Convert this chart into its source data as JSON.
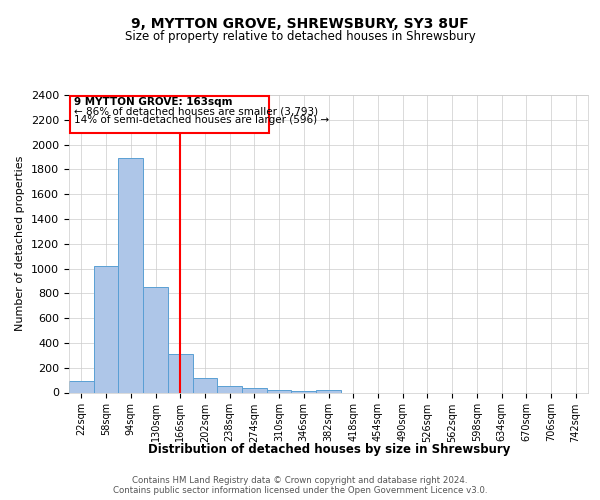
{
  "title1": "9, MYTTON GROVE, SHREWSBURY, SY3 8UF",
  "title2": "Size of property relative to detached houses in Shrewsbury",
  "xlabel": "Distribution of detached houses by size in Shrewsbury",
  "ylabel": "Number of detached properties",
  "footer1": "Contains HM Land Registry data © Crown copyright and database right 2024.",
  "footer2": "Contains public sector information licensed under the Open Government Licence v3.0.",
  "bin_labels": [
    "22sqm",
    "58sqm",
    "94sqm",
    "130sqm",
    "166sqm",
    "202sqm",
    "238sqm",
    "274sqm",
    "310sqm",
    "346sqm",
    "382sqm",
    "418sqm",
    "454sqm",
    "490sqm",
    "526sqm",
    "562sqm",
    "598sqm",
    "634sqm",
    "670sqm",
    "706sqm",
    "742sqm"
  ],
  "bar_heights": [
    90,
    1020,
    1890,
    855,
    310,
    115,
    50,
    35,
    20,
    10,
    20,
    0,
    0,
    0,
    0,
    0,
    0,
    0,
    0,
    0,
    0
  ],
  "bar_color": "#aec6e8",
  "bar_edgecolor": "#5a9fd4",
  "vline_x_index": 4,
  "vline_color": "red",
  "ann_line1": "9 MYTTON GROVE: 163sqm",
  "ann_line2": "← 86% of detached houses are smaller (3,793)",
  "ann_line3": "14% of semi-detached houses are larger (596) →",
  "annotation_box_color": "red",
  "ylim": [
    0,
    2400
  ],
  "yticks": [
    0,
    200,
    400,
    600,
    800,
    1000,
    1200,
    1400,
    1600,
    1800,
    2000,
    2200,
    2400
  ],
  "bg_color": "#ffffff",
  "grid_color": "#cccccc"
}
